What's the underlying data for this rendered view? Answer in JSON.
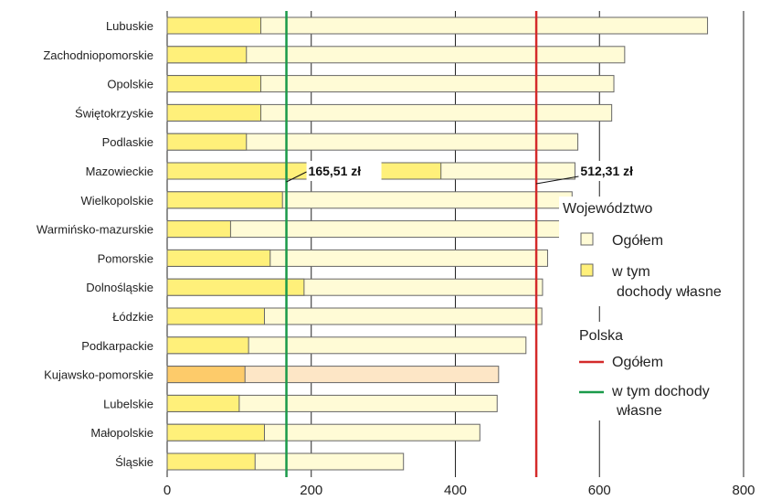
{
  "chart_data": {
    "type": "bar",
    "orientation": "horizontal",
    "categories": [
      "Lubuskie",
      "Zachodniopomorskie",
      "Opolskie",
      "Świętokrzyskie",
      "Podlaskie",
      "Mazowieckie",
      "Wielkopolskie",
      "Warmińsko-mazurskie",
      "Pomorskie",
      "Dolnośląskie",
      "Łódzkie",
      "Podkarpackie",
      "Kujawsko-pomorskie",
      "Lubelskie",
      "Małopolskie",
      "Śląskie"
    ],
    "series": [
      {
        "name": "Ogółem",
        "values": [
          750,
          635,
          620,
          617,
          570,
          566,
          562,
          550,
          528,
          521,
          520,
          498,
          460,
          458,
          434,
          328
        ]
      },
      {
        "name": "w tym dochody własne",
        "values": [
          130,
          110,
          130,
          130,
          110,
          380,
          160,
          88,
          143,
          190,
          135,
          113,
          108,
          100,
          135,
          122
        ]
      }
    ],
    "highlight_category": "Kujawsko-pomorskie",
    "xlim": [
      0,
      800
    ],
    "xticks": [
      0,
      200,
      400,
      600,
      800
    ],
    "grid": "vertical",
    "reference_lines": [
      {
        "name": "Ogółem",
        "value": 512.31,
        "label": "512,31 zł",
        "color": "#d42a2a"
      },
      {
        "name": "w tym dochody własne",
        "value": 165.51,
        "label": "165,51 zł",
        "color": "#1a9a4a"
      }
    ],
    "legend": {
      "placement": "right",
      "group1_title": "Województwo",
      "group1_items": [
        "Ogółem",
        "w tym",
        "dochody własne"
      ],
      "group2_title": "Polska",
      "group2_items": [
        "Ogółem",
        "w tym dochody",
        "własne"
      ]
    },
    "colors": {
      "total_fill": "#fffbd6",
      "own_fill": "#fff07a",
      "highlight_total_fill": "#fde6c6",
      "highlight_own_fill": "#fdcb6a",
      "bar_stroke": "#666666",
      "total_line": "#d42a2a",
      "own_line": "#1a9a4a",
      "grid": "#222222"
    }
  }
}
